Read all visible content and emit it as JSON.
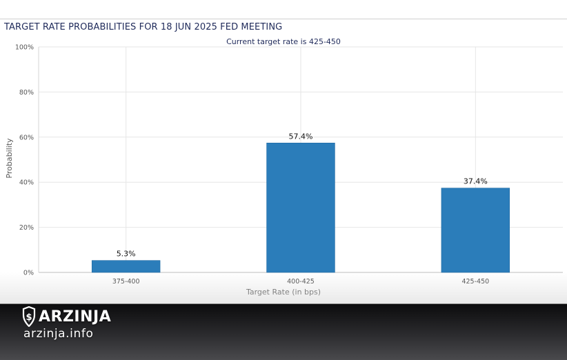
{
  "chart_data": {
    "type": "bar",
    "title": "TARGET RATE PROBABILITIES FOR 18 JUN 2025 FED MEETING",
    "subtitle": "Current target rate is 425-450",
    "xlabel": "Target Rate (in bps)",
    "ylabel": "Probability",
    "categories": [
      "375-400",
      "400-425",
      "425-450"
    ],
    "values": [
      5.3,
      57.4,
      37.4
    ],
    "data_labels": [
      "5.3%",
      "57.4%",
      "37.4%"
    ],
    "yticks": [
      "0%",
      "20%",
      "40%",
      "60%",
      "80%",
      "100%"
    ],
    "ylim": [
      0,
      100
    ],
    "grid": true,
    "bar_color": "#2b7dba"
  },
  "watermark": {
    "brand": "ARZINJA",
    "url": "arzinja.info"
  }
}
